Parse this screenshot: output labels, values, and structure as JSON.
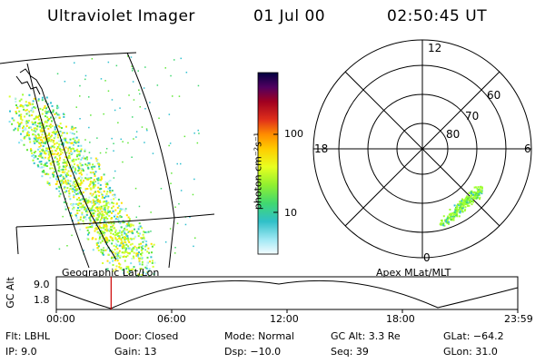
{
  "header": {
    "instrument": "Ultraviolet Imager",
    "date": "01 Jul 00",
    "time": "02:50:45 UT"
  },
  "colorbar": {
    "label": "photon cm⁻²s⁻¹",
    "ticks": [
      "100",
      "10"
    ],
    "colors": [
      "#000040",
      "#2a0050",
      "#500060",
      "#7a0040",
      "#a00020",
      "#c00010",
      "#e0301a",
      "#ff7f00",
      "#ffb000",
      "#ffe000",
      "#d8ff30",
      "#a0ff30",
      "#60e838",
      "#40d870",
      "#30c8a0",
      "#30c0d0",
      "#40c8e0",
      "#80e0f0",
      "#c0f0f8",
      "#f0fbff"
    ]
  },
  "left_map": {
    "caption": "Geographic Lat/Lon"
  },
  "polar_map": {
    "caption": "Apex MLat/MLT",
    "mlt_labels": {
      "top": "12",
      "left": "18",
      "right": "6",
      "bottom": "0"
    },
    "lat_labels": [
      "60",
      "70",
      "80"
    ]
  },
  "orbit_plot": {
    "ylabel": "GC Alt",
    "yticks": [
      "9.0",
      "1.8"
    ],
    "xticks": [
      "00:00",
      "06:00",
      "12:00",
      "18:00",
      "23:59"
    ],
    "marker_color": "#cc0000",
    "marker_time_hours": 2.85
  },
  "footer": {
    "flt": "Flt: LBHL",
    "ip": "IP:  9.0",
    "door": "Door: Closed",
    "gain": "Gain: 13",
    "mode": "Mode: Normal",
    "dsp": "Dsp:  −10.0",
    "gcalt": "GC Alt: 3.3 Re",
    "seq": "Seq: 39",
    "glat": "GLat: −64.2",
    "glon": "GLon:  31.0"
  }
}
